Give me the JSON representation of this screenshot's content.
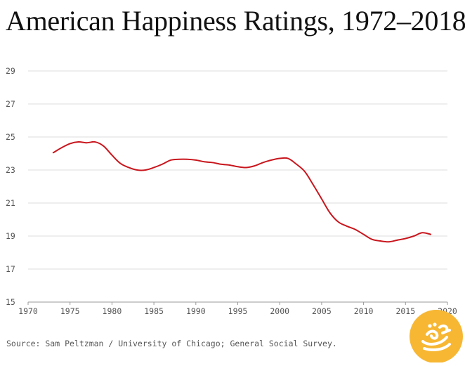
{
  "title": "American Happiness Ratings, 1972–2018",
  "source": "Source: Sam Peltzman / University of Chicago; General Social Survey.",
  "colors": {
    "line": "#c8161d",
    "grid": "#dddddd",
    "axis": "#999999",
    "tick_text": "#555555",
    "logo_bg": "#f7b733"
  },
  "chart_data": {
    "type": "line",
    "title": "American Happiness Ratings, 1972–2018",
    "xlabel": "",
    "ylabel": "",
    "xlim": [
      1970,
      2020
    ],
    "ylim": [
      15,
      29
    ],
    "x_ticks": [
      1970,
      1975,
      1980,
      1985,
      1990,
      1995,
      2000,
      2005,
      2010,
      2015,
      2020
    ],
    "y_ticks": [
      15,
      17,
      19,
      21,
      23,
      25,
      27,
      29
    ],
    "grid": true,
    "series": [
      {
        "x": [
          1973,
          1974,
          1975,
          1976,
          1977,
          1978,
          1979,
          1980,
          1981,
          1982,
          1983,
          1984,
          1985,
          1986,
          1987,
          1988,
          1989,
          1990,
          1991,
          1992,
          1993,
          1994,
          1995,
          1996,
          1997,
          1998,
          1999,
          2000,
          2001,
          2002,
          2003,
          2004,
          2005,
          2006,
          2007,
          2008,
          2009,
          2010,
          2011,
          2012,
          2013,
          2014,
          2015,
          2016,
          2017,
          2018
        ],
        "values": [
          24.05,
          24.35,
          24.6,
          24.7,
          24.65,
          24.7,
          24.45,
          23.9,
          23.4,
          23.15,
          23.0,
          23.0,
          23.15,
          23.35,
          23.6,
          23.65,
          23.65,
          23.6,
          23.5,
          23.45,
          23.35,
          23.3,
          23.2,
          23.15,
          23.25,
          23.45,
          23.6,
          23.7,
          23.7,
          23.35,
          22.9,
          22.1,
          21.25,
          20.4,
          19.85,
          19.6,
          19.4,
          19.1,
          18.8,
          18.7,
          18.65,
          18.75,
          18.85,
          19.0,
          19.2,
          19.1
        ]
      }
    ]
  }
}
